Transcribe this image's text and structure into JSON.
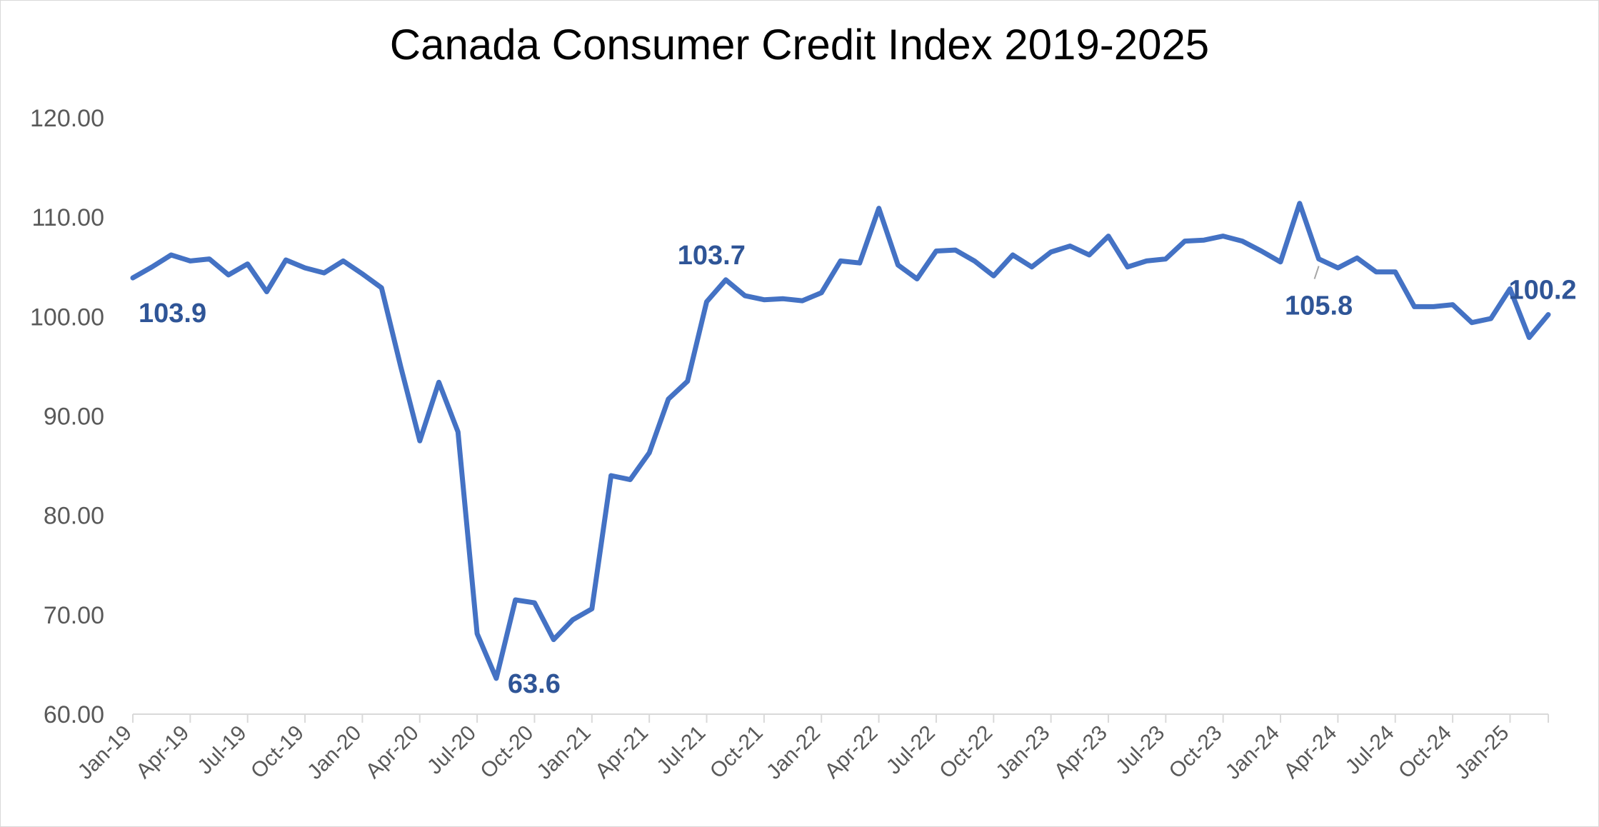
{
  "chart_data": {
    "type": "line",
    "title": "Canada Consumer Credit Index 2019-2025",
    "xlabel": "",
    "ylabel": "",
    "ylim": [
      60,
      120
    ],
    "yticks": [
      "60.00",
      "70.00",
      "80.00",
      "90.00",
      "100.00",
      "110.00",
      "120.00"
    ],
    "xtick_labels": [
      "Jan-19",
      "Apr-19",
      "Jul-19",
      "Oct-19",
      "Jan-20",
      "Apr-20",
      "Jul-20",
      "Oct-20",
      "Jan-21",
      "Apr-21",
      "Jul-21",
      "Oct-21",
      "Jan-22",
      "Apr-22",
      "Jul-22",
      "Oct-22",
      "Jan-23",
      "Apr-23",
      "Jul-23",
      "Oct-23",
      "Jan-24",
      "Apr-24",
      "Jul-24",
      "Oct-24",
      "Jan-25"
    ],
    "grid": false,
    "legend": "none",
    "color": "#4472c4",
    "series": [
      {
        "name": "Consumer Credit Index",
        "values": [
          103.9,
          105.0,
          106.2,
          105.6,
          105.8,
          104.2,
          105.3,
          102.5,
          105.7,
          104.9,
          104.4,
          105.6,
          104.3,
          102.9,
          95.0,
          87.5,
          93.4,
          88.4,
          68.1,
          63.6,
          71.5,
          71.2,
          67.5,
          69.5,
          70.6,
          84.0,
          83.6,
          86.3,
          91.7,
          93.5,
          101.5,
          103.7,
          102.1,
          101.7,
          101.8,
          101.6,
          102.4,
          105.6,
          105.4,
          110.9,
          105.2,
          103.8,
          106.6,
          106.7,
          105.6,
          104.1,
          106.2,
          105.0,
          106.5,
          107.1,
          106.2,
          108.1,
          105.0,
          105.6,
          105.8,
          107.6,
          107.7,
          108.1,
          107.6,
          106.6,
          105.5,
          111.4,
          105.8,
          104.9,
          105.9,
          104.5,
          104.5,
          101.0,
          101.0,
          101.2,
          99.4,
          99.8,
          102.8,
          97.9,
          100.2
        ]
      }
    ],
    "annotations": [
      {
        "index": 0,
        "text": "103.9"
      },
      {
        "index": 19,
        "text": "63.6"
      },
      {
        "index": 31,
        "text": "103.7"
      },
      {
        "index": 62,
        "text": "105.8"
      },
      {
        "index": 74,
        "text": "100.2"
      }
    ]
  }
}
